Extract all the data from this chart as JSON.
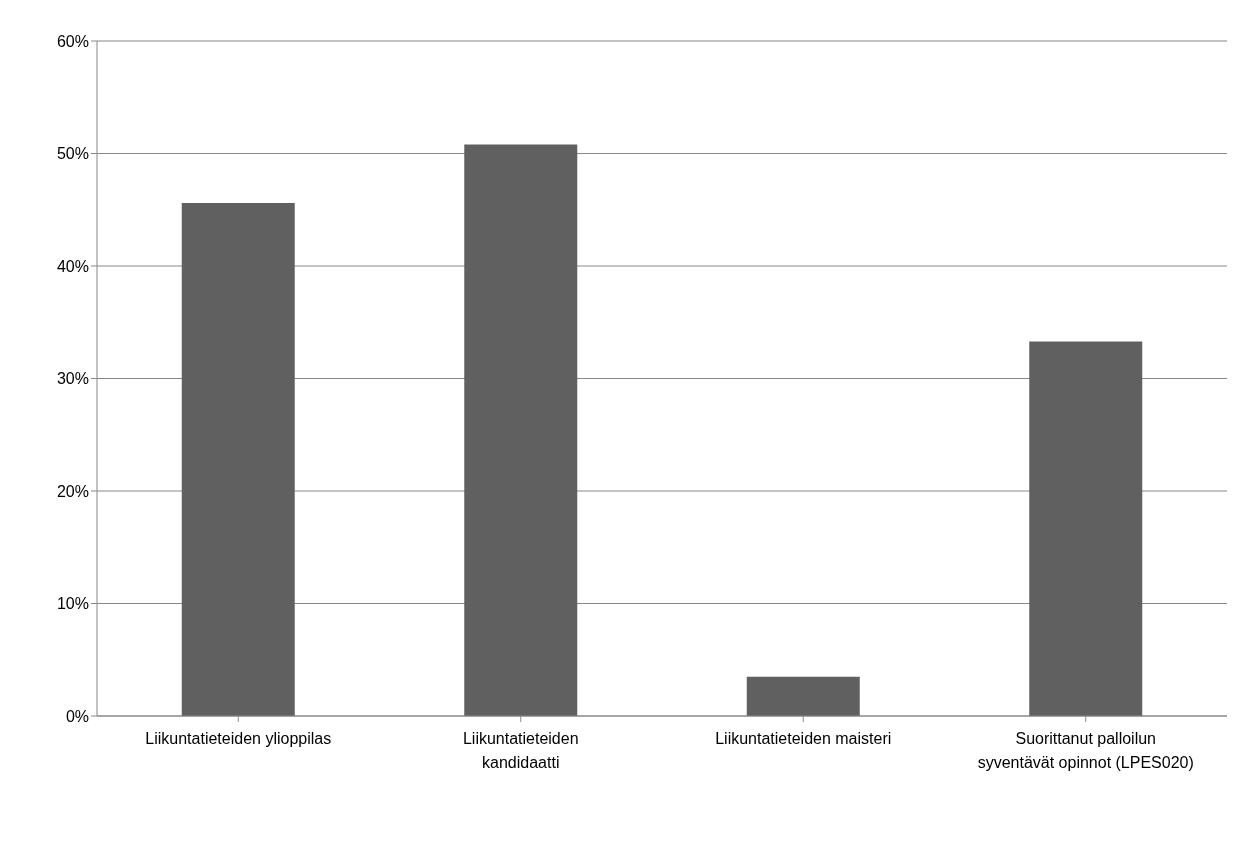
{
  "chart_data": {
    "type": "bar",
    "categories": [
      "Liikuntatieteiden ylioppilas",
      "Liikuntatieteiden kandidaatti",
      "Liikuntatieteiden maisteri",
      "Suorittanut palloilun syventävät opinnot (LPES020)"
    ],
    "values": [
      45.6,
      50.8,
      3.5,
      33.3
    ],
    "color": "#606060",
    "ylim": [
      0,
      60
    ],
    "yticks": [
      {
        "value": 0,
        "label": "0%"
      },
      {
        "value": 10,
        "label": "10%"
      },
      {
        "value": 20,
        "label": "20%"
      },
      {
        "value": 30,
        "label": "30%"
      },
      {
        "value": 40,
        "label": "40%"
      },
      {
        "value": 50,
        "label": "50%"
      },
      {
        "value": 60,
        "label": "60%"
      }
    ],
    "grid": "y"
  }
}
